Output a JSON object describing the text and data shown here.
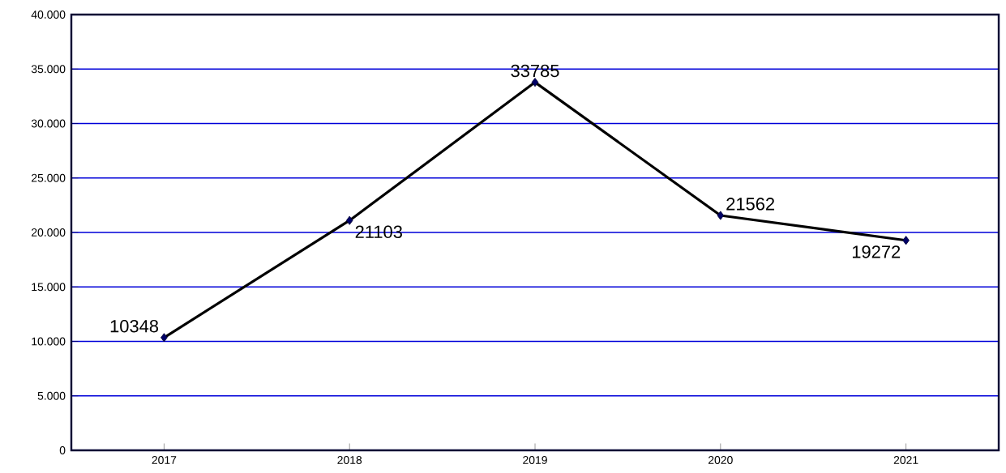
{
  "chart_data": {
    "type": "line",
    "categories": [
      "2017",
      "2018",
      "2019",
      "2020",
      "2021"
    ],
    "series": [
      {
        "color": "#000000",
        "values": [
          10348,
          21103,
          33785,
          21562,
          19272
        ]
      }
    ],
    "ylim": [
      0,
      40000
    ],
    "yticks": [
      0,
      {
        "value": 5000,
        "label": "5.000"
      },
      {
        "value": 10000,
        "label": "10.000"
      },
      {
        "value": 15000,
        "label": "15.000"
      },
      {
        "value": 20000,
        "label": "20.000"
      },
      {
        "value": 25000,
        "label": "25.000"
      },
      {
        "value": 30000,
        "label": "30.000"
      },
      {
        "value": 35000,
        "label": "35.000"
      },
      {
        "value": 40000,
        "label": "40.000"
      }
    ],
    "grid": "y",
    "marker": "diamond",
    "line_style": "solid",
    "data_labels": true
  }
}
